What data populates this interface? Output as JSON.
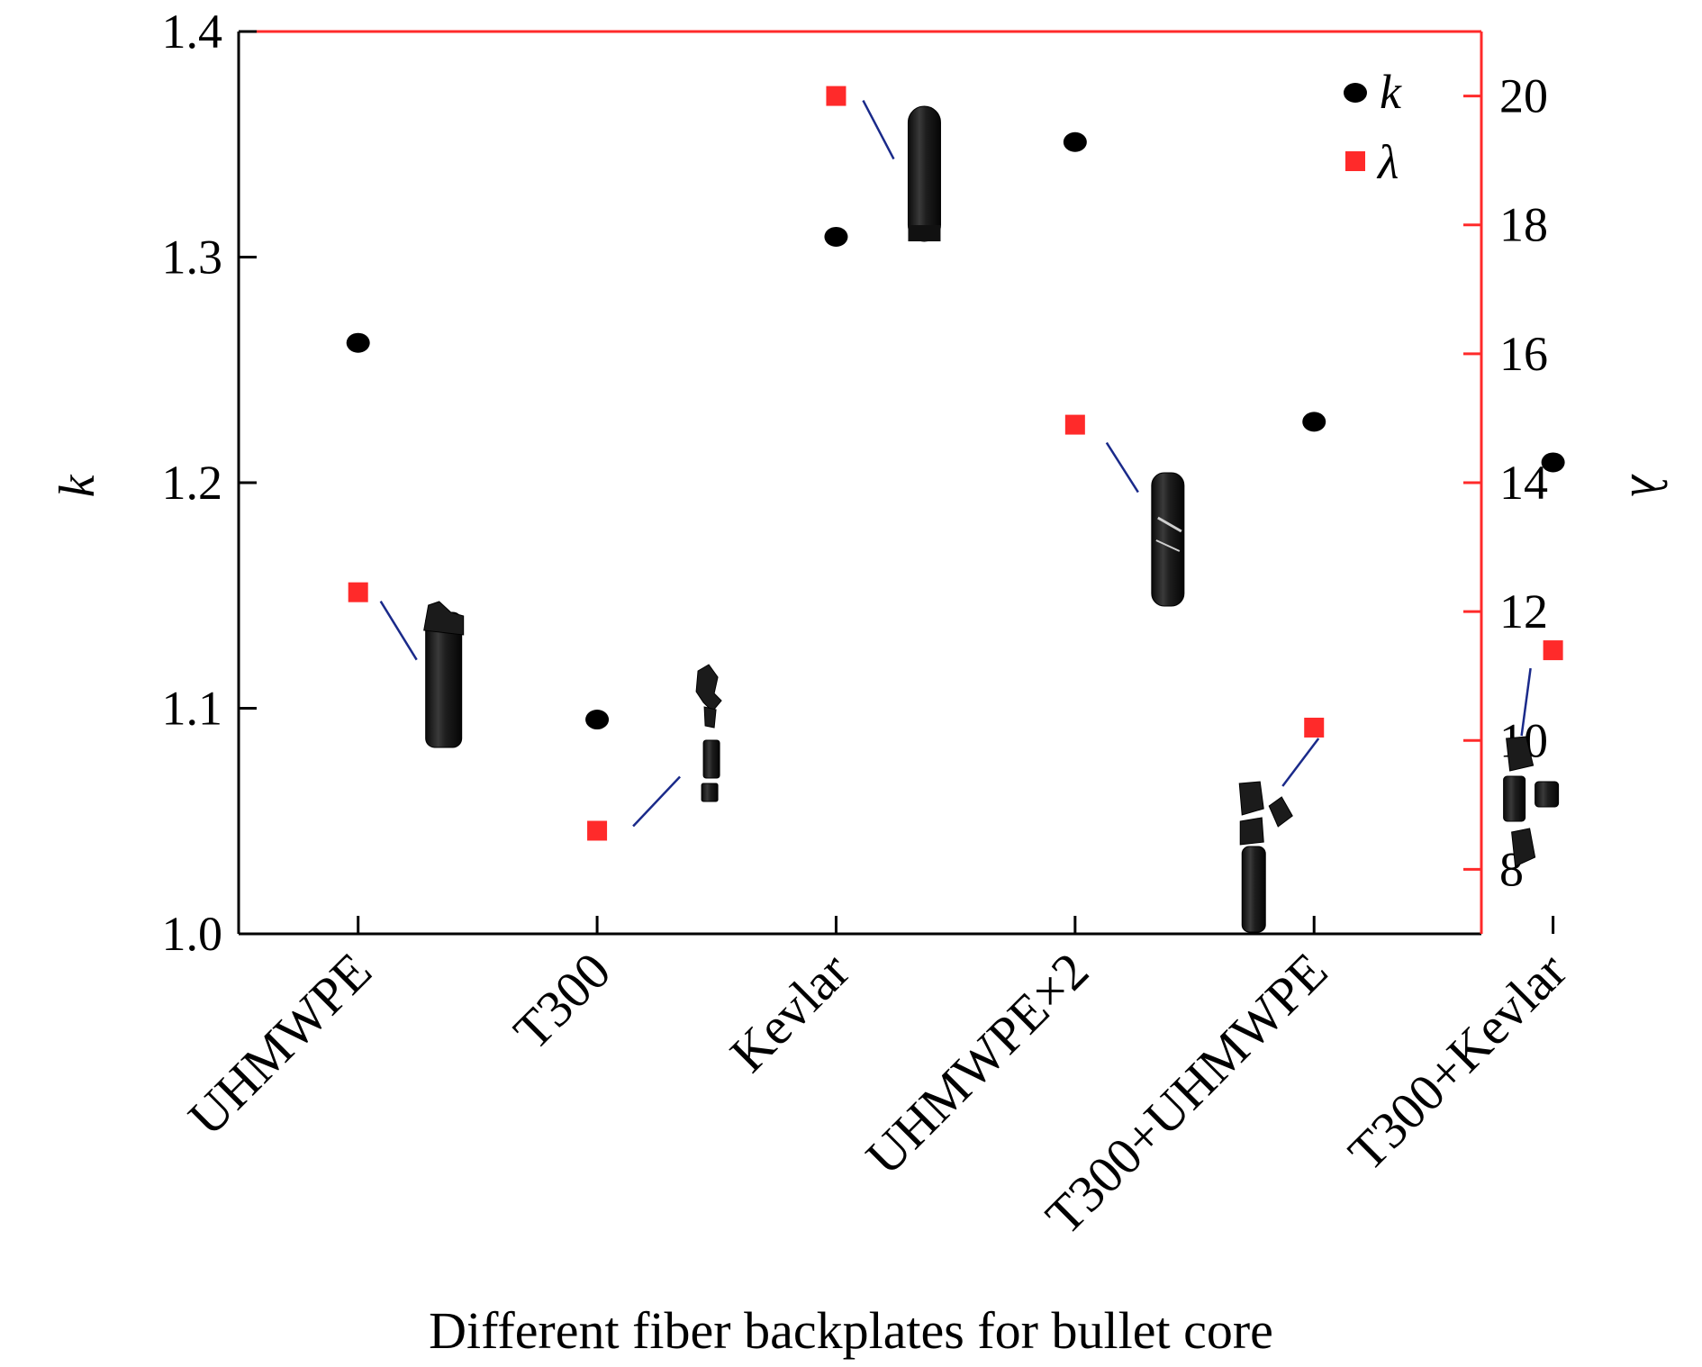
{
  "chart_data": {
    "type": "scatter",
    "title": "",
    "xlabel": "Different fiber backplates for bullet core",
    "ylabel": "k",
    "y2label": "λ",
    "categories": [
      "UHMWPE",
      "T300",
      "Kevlar",
      "UHMWPE×2",
      "T300+UHMWPE",
      "T300+Kevlar"
    ],
    "ylim": [
      1.0,
      1.4
    ],
    "y_ticks": [
      "1.0",
      "1.1",
      "1.2",
      "1.3",
      "1.4"
    ],
    "y2lim": [
      7,
      21
    ],
    "y2_ticks": [
      "8",
      "10",
      "12",
      "14",
      "16",
      "18",
      "20"
    ],
    "legend_position": "top-right",
    "series": [
      {
        "name": "k",
        "axis": "left",
        "marker": "circle",
        "color": "#000000",
        "values": [
          1.262,
          1.095,
          1.309,
          1.351,
          1.227,
          1.209
        ]
      },
      {
        "name": "λ",
        "axis": "right",
        "marker": "square",
        "color": "#ff2a2a",
        "values": [
          12.3,
          8.6,
          20.0,
          14.9,
          10.2,
          11.4
        ]
      }
    ],
    "colors": {
      "right_axis": "#ff2a2a",
      "leader_line": "#1a2a8a",
      "fragment": "#1b1b1b"
    },
    "annotations": {
      "type": "bullet-core fragment images",
      "fragment_states": [
        "intact-flat-top",
        "shattered",
        "intact-round",
        "cracked",
        "broken",
        "fragmented"
      ]
    }
  }
}
